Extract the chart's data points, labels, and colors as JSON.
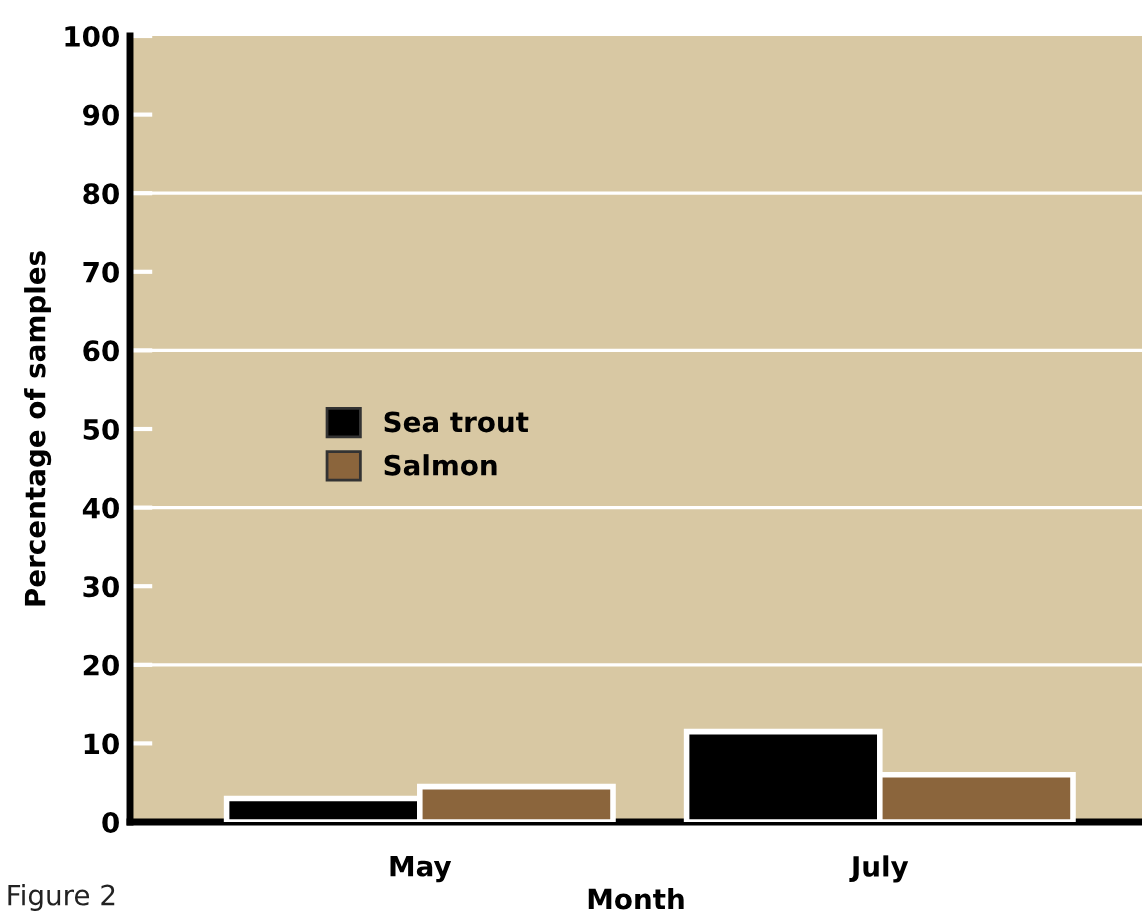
{
  "chart_data": {
    "type": "bar",
    "xlabel": "Month",
    "ylabel": "Percentage of samples",
    "categories": [
      "May",
      "July"
    ],
    "series": [
      {
        "name": "Sea trout",
        "color": "#000000",
        "values": [
          3,
          11.5
        ]
      },
      {
        "name": "Salmon",
        "color": "#8b653c",
        "values": [
          4.5,
          6
        ]
      }
    ],
    "ylim": [
      0,
      100
    ],
    "yticks": [
      0,
      10,
      20,
      30,
      40,
      50,
      60,
      70,
      80,
      90,
      100
    ],
    "grid": "y",
    "legend": "left",
    "annotations": [
      "Figure 2"
    ]
  }
}
